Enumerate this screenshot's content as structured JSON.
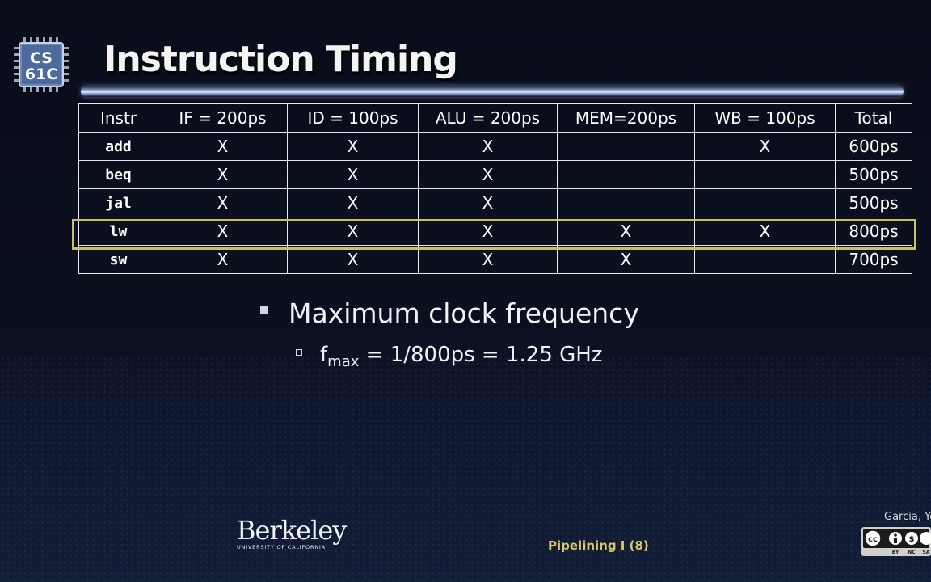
{
  "logo": {
    "line1": "CS",
    "line2": "61C"
  },
  "title": "Instruction Timing",
  "table": {
    "headers": [
      "Instr",
      "IF = 200ps",
      "ID = 100ps",
      "ALU = 200ps",
      "MEM=200ps",
      "WB = 100ps",
      "Total"
    ],
    "rows": [
      {
        "instr": "add",
        "cells": [
          "X",
          "X",
          "X",
          "",
          "X"
        ],
        "total": "600ps"
      },
      {
        "instr": "beq",
        "cells": [
          "X",
          "X",
          "X",
          "",
          ""
        ],
        "total": "500ps"
      },
      {
        "instr": "jal",
        "cells": [
          "X",
          "X",
          "X",
          "",
          ""
        ],
        "total": "500ps"
      },
      {
        "instr": "lw",
        "cells": [
          "X",
          "X",
          "X",
          "X",
          "X"
        ],
        "total": "800ps"
      },
      {
        "instr": "sw",
        "cells": [
          "X",
          "X",
          "X",
          "X",
          ""
        ],
        "total": "700ps"
      }
    ],
    "highlighted_row": "lw"
  },
  "bullets": {
    "main": "Maximum clock frequency",
    "sub_f": "f",
    "sub_subscript": "max",
    "sub_rest": " = 1/800ps = 1.25 GHz"
  },
  "footer": {
    "university": "Berkeley",
    "university_sub": "UNIVERSITY OF CALIFORNIA",
    "slide_label": "Pipelining I (8)",
    "author": "Garcia, Yo",
    "license_labels": [
      "BY",
      "NC",
      "SA"
    ]
  },
  "colors": {
    "highlight": "#c8c16a",
    "footer_text": "#d8c86a"
  }
}
